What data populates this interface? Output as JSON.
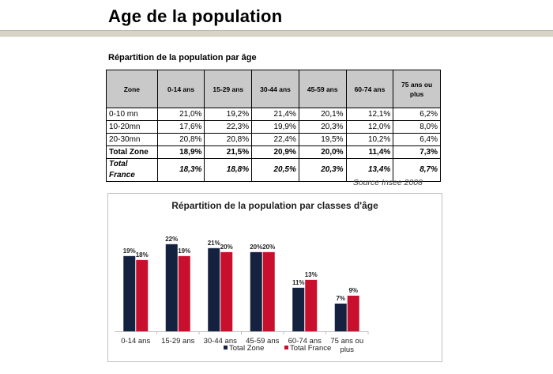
{
  "header": {
    "title": "Age de la population"
  },
  "table": {
    "title": "Répartition de la population par âge",
    "columns": [
      "Zone",
      "0-14 ans",
      "15-29 ans",
      "30-44 ans",
      "45-59 ans",
      "60-74 ans",
      "75 ans ou plus"
    ],
    "rows": [
      [
        "0-10 mn",
        "21,0%",
        "19,2%",
        "21,4%",
        "20,1%",
        "12,1%",
        "6,2%"
      ],
      [
        "10-20mn",
        "17,6%",
        "22,3%",
        "19,9%",
        "20,3%",
        "12,0%",
        "8,0%"
      ],
      [
        "20-30mn",
        "20,8%",
        "20,8%",
        "22,4%",
        "19,5%",
        "10,2%",
        "6,4%"
      ],
      [
        "Total Zone",
        "18,9%",
        "21,5%",
        "20,9%",
        "20,0%",
        "11,4%",
        "7,3%"
      ],
      [
        "Total France",
        "18,3%",
        "18,8%",
        "20,5%",
        "20,3%",
        "13,4%",
        "8,7%"
      ]
    ],
    "source": "Source Insee 2008"
  },
  "chart_data": {
    "type": "bar",
    "title": "Répartition de la population par classes d'âge",
    "categories": [
      "0-14 ans",
      "15-29 ans",
      "30-44 ans",
      "45-59 ans",
      "60-74 ans",
      "75 ans ou plus"
    ],
    "category_labels": [
      [
        "0-14 ans"
      ],
      [
        "15-29 ans"
      ],
      [
        "30-44 ans"
      ],
      [
        "45-59 ans"
      ],
      [
        "60-74 ans"
      ],
      [
        "75 ans ou",
        "plus"
      ]
    ],
    "series": [
      {
        "name": "Total Zone",
        "values": [
          19,
          22,
          21,
          20,
          11,
          7
        ],
        "labels": [
          "19%",
          "22%",
          "21%",
          "20%",
          "11%",
          "7%"
        ],
        "color": "#14213f"
      },
      {
        "name": "Total France",
        "values": [
          18,
          19,
          20,
          20,
          13,
          9
        ],
        "labels": [
          "18%",
          "19%",
          "20%",
          "20%",
          "13%",
          "9%"
        ],
        "color": "#c8102e"
      }
    ],
    "ylim": [
      0,
      25
    ],
    "grid": false,
    "legend_position": "bottom"
  }
}
